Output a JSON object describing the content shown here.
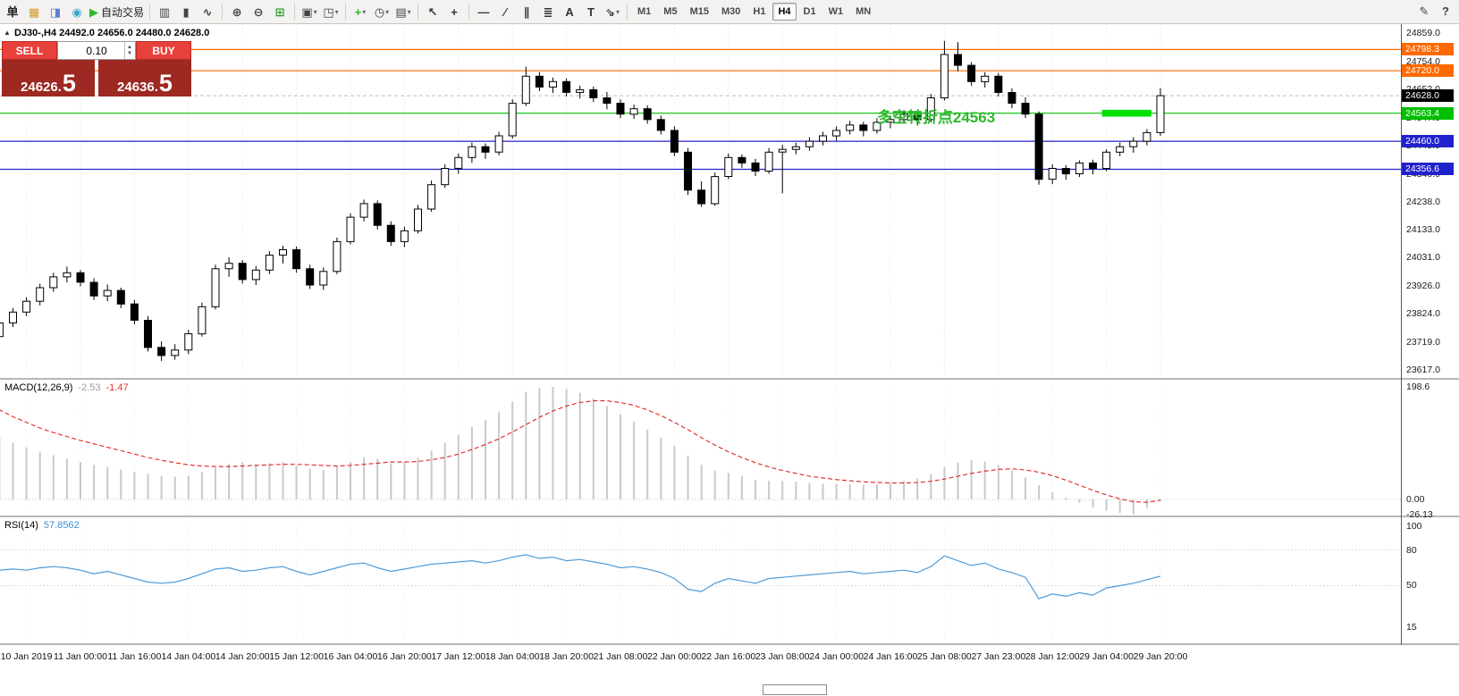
{
  "toolbar": {
    "groups": [
      {
        "items": [
          {
            "name": "new-order-button",
            "glyph": "单",
            "color": "#222"
          },
          {
            "name": "market-watch-icon",
            "glyph": "▦",
            "color": "#d39b2c"
          },
          {
            "name": "data-window-icon",
            "glyph": "◨",
            "color": "#5b7fd4"
          },
          {
            "name": "navigator-icon",
            "glyph": "◉",
            "color": "#3aa6c4"
          },
          {
            "name": "autotrading-button",
            "glyph": "▶",
            "color": "#2db82d",
            "label": "自动交易"
          }
        ]
      },
      {
        "items": [
          {
            "name": "bar-chart-icon",
            "glyph": "▥",
            "color": "#444"
          },
          {
            "name": "candlestick-chart-icon",
            "glyph": "▮",
            "color": "#444"
          },
          {
            "name": "line-chart-icon",
            "glyph": "∿",
            "color": "#444"
          }
        ]
      },
      {
        "items": [
          {
            "name": "zoom-in-icon",
            "glyph": "⊕",
            "color": "#444"
          },
          {
            "name": "zoom-out-icon",
            "glyph": "⊖",
            "color": "#444"
          },
          {
            "name": "tile-windows-icon",
            "glyph": "⊞",
            "color": "#2f9e2f"
          }
        ]
      },
      {
        "items": [
          {
            "name": "new-chart-icon",
            "glyph": "▣",
            "color": "#444",
            "dropdown": true
          },
          {
            "name": "profiles-icon",
            "glyph": "◳",
            "color": "#444",
            "dropdown": true
          }
        ]
      },
      {
        "items": [
          {
            "name": "indicators-icon",
            "glyph": "+",
            "color": "#2db82d",
            "dropdown": true
          },
          {
            "name": "periods-icon",
            "glyph": "◷",
            "color": "#444",
            "dropdown": true
          },
          {
            "name": "templates-icon",
            "glyph": "▤",
            "color": "#444",
            "dropdown": true
          }
        ]
      },
      {
        "items": [
          {
            "name": "cursor-icon",
            "glyph": "↖",
            "color": "#333"
          },
          {
            "name": "crosshair-icon",
            "glyph": "+",
            "color": "#333"
          }
        ]
      },
      {
        "items": [
          {
            "name": "horizontal-line-icon",
            "glyph": "—",
            "color": "#333"
          },
          {
            "name": "trendline-icon",
            "glyph": "∕",
            "color": "#333"
          },
          {
            "name": "channel-icon",
            "glyph": "∥",
            "color": "#333"
          },
          {
            "name": "fibonacci-icon",
            "glyph": "≣",
            "color": "#333"
          },
          {
            "name": "text-icon",
            "glyph": "A",
            "color": "#333"
          },
          {
            "name": "label-icon",
            "glyph": "T",
            "color": "#333"
          },
          {
            "name": "arrows-icon",
            "glyph": "⇘",
            "color": "#333",
            "dropdown": true
          }
        ]
      }
    ],
    "timeframes": {
      "items": [
        "M1",
        "M5",
        "M15",
        "M30",
        "H1",
        "H4",
        "D1",
        "W1",
        "MN"
      ],
      "active": "H4"
    },
    "right_items": [
      {
        "name": "chart-properties-icon",
        "glyph": "✎",
        "color": "#444"
      },
      {
        "name": "context-help-icon",
        "glyph": "?",
        "color": "#444"
      }
    ]
  },
  "chart_header": {
    "toggle_glyph": "▲",
    "symbol_info": "DJ30-,H4 24492.0 24656.0 24480.0 24628.0"
  },
  "trade_panel": {
    "sell_label": "SELL",
    "buy_label": "BUY",
    "volume": "0.10",
    "sell_price": "24626.",
    "sell_price_big": "5",
    "buy_price": "24636.",
    "buy_price_big": "5"
  },
  "chart_data": {
    "type": "candlestick",
    "symbol": "DJ30-",
    "timeframe": "H4",
    "current_bar": {
      "open": 24492.0,
      "high": 24656.0,
      "low": 24480.0,
      "close": 24628.0
    },
    "price_axis_ticks": [
      "24859.0",
      "24754.0",
      "24652.0",
      "24547.0",
      "24445.0",
      "24340.0",
      "24238.0",
      "24133.0",
      "24031.0",
      "23926.0",
      "23824.0",
      "23719.0",
      "23617.0"
    ],
    "time_axis": [
      "10 Jan 2019",
      "11 Jan 00:00",
      "11 Jan 16:00",
      "14 Jan 04:00",
      "14 Jan 20:00",
      "15 Jan 12:00",
      "16 Jan 04:00",
      "16 Jan 20:00",
      "17 Jan 12:00",
      "18 Jan 04:00",
      "18 Jan 20:00",
      "21 Jan 08:00",
      "22 Jan 00:00",
      "22 Jan 16:00",
      "23 Jan 08:00",
      "24 Jan 00:00",
      "24 Jan 16:00",
      "25 Jan 08:00",
      "27 Jan 23:00",
      "28 Jan 12:00",
      "29 Jan 04:00",
      "29 Jan 20:00"
    ],
    "candles": [
      [
        23720,
        23760,
        23690,
        23740
      ],
      [
        23740,
        23805,
        23725,
        23790
      ],
      [
        23790,
        23845,
        23775,
        23830
      ],
      [
        23830,
        23885,
        23815,
        23870
      ],
      [
        23870,
        23935,
        23855,
        23920
      ],
      [
        23920,
        23975,
        23905,
        23960
      ],
      [
        23960,
        23998,
        23940,
        23975
      ],
      [
        23975,
        23985,
        23925,
        23940
      ],
      [
        23940,
        23955,
        23875,
        23890
      ],
      [
        23890,
        23932,
        23870,
        23910
      ],
      [
        23910,
        23920,
        23845,
        23860
      ],
      [
        23860,
        23875,
        23785,
        23800
      ],
      [
        23800,
        23815,
        23685,
        23700
      ],
      [
        23700,
        23722,
        23650,
        23670
      ],
      [
        23670,
        23712,
        23655,
        23690
      ],
      [
        23690,
        23765,
        23675,
        23750
      ],
      [
        23750,
        23865,
        23740,
        23850
      ],
      [
        23850,
        24005,
        23840,
        23990
      ],
      [
        23990,
        24032,
        23960,
        24010
      ],
      [
        24010,
        24022,
        23935,
        23950
      ],
      [
        23950,
        24000,
        23930,
        23985
      ],
      [
        23985,
        24055,
        23970,
        24040
      ],
      [
        24040,
        24075,
        24010,
        24060
      ],
      [
        24060,
        24072,
        23975,
        23990
      ],
      [
        23990,
        24005,
        23915,
        23930
      ],
      [
        23930,
        23995,
        23912,
        23980
      ],
      [
        23980,
        24105,
        23970,
        24090
      ],
      [
        24090,
        24195,
        24080,
        24180
      ],
      [
        24180,
        24245,
        24165,
        24230
      ],
      [
        24230,
        24242,
        24135,
        24150
      ],
      [
        24150,
        24165,
        24075,
        24090
      ],
      [
        24090,
        24145,
        24070,
        24130
      ],
      [
        24130,
        24225,
        24120,
        24210
      ],
      [
        24210,
        24315,
        24200,
        24300
      ],
      [
        24300,
        24375,
        24288,
        24360
      ],
      [
        24360,
        24415,
        24340,
        24400
      ],
      [
        24400,
        24455,
        24380,
        24440
      ],
      [
        24440,
        24452,
        24395,
        24420
      ],
      [
        24420,
        24495,
        24408,
        24480
      ],
      [
        24480,
        24615,
        24470,
        24600
      ],
      [
        24600,
        24735,
        24590,
        24700
      ],
      [
        24700,
        24715,
        24645,
        24660
      ],
      [
        24660,
        24695,
        24638,
        24680
      ],
      [
        24680,
        24692,
        24625,
        24640
      ],
      [
        24640,
        24665,
        24618,
        24650
      ],
      [
        24650,
        24662,
        24605,
        24620
      ],
      [
        24620,
        24642,
        24578,
        24600
      ],
      [
        24600,
        24615,
        24545,
        24560
      ],
      [
        24560,
        24595,
        24542,
        24580
      ],
      [
        24580,
        24592,
        24525,
        24540
      ],
      [
        24540,
        24555,
        24485,
        24500
      ],
      [
        24500,
        24515,
        24405,
        24420
      ],
      [
        24420,
        24435,
        24262,
        24280
      ],
      [
        24280,
        24312,
        24218,
        24230
      ],
      [
        24230,
        24345,
        24222,
        24330
      ],
      [
        24330,
        24415,
        24320,
        24400
      ],
      [
        24400,
        24412,
        24362,
        24380
      ],
      [
        24380,
        24395,
        24332,
        24350
      ],
      [
        24350,
        24435,
        24340,
        24420
      ],
      [
        24420,
        24448,
        24268,
        24430
      ],
      [
        24430,
        24455,
        24412,
        24440
      ],
      [
        24440,
        24475,
        24425,
        24460
      ],
      [
        24460,
        24495,
        24445,
        24480
      ],
      [
        24480,
        24515,
        24462,
        24500
      ],
      [
        24500,
        24535,
        24485,
        24520
      ],
      [
        24520,
        24532,
        24478,
        24500
      ],
      [
        24500,
        24545,
        24488,
        24530
      ],
      [
        24530,
        24555,
        24508,
        24540
      ],
      [
        24540,
        24575,
        24525,
        24560
      ],
      [
        24560,
        24572,
        24518,
        24540
      ],
      [
        24540,
        24635,
        24530,
        24620
      ],
      [
        24620,
        24830,
        24610,
        24780
      ],
      [
        24780,
        24825,
        24718,
        24740
      ],
      [
        24740,
        24752,
        24665,
        24680
      ],
      [
        24680,
        24715,
        24658,
        24700
      ],
      [
        24700,
        24712,
        24625,
        24640
      ],
      [
        24640,
        24655,
        24582,
        24600
      ],
      [
        24600,
        24622,
        24545,
        24560
      ],
      [
        24560,
        24570,
        24300,
        24320
      ],
      [
        24320,
        24375,
        24302,
        24360
      ],
      [
        24360,
        24372,
        24318,
        24340
      ],
      [
        24340,
        24390,
        24328,
        24380
      ],
      [
        24380,
        24392,
        24338,
        24360
      ],
      [
        24360,
        24430,
        24350,
        24420
      ],
      [
        24420,
        24455,
        24405,
        24440
      ],
      [
        24440,
        24475,
        24418,
        24460
      ],
      [
        24460,
        24505,
        24445,
        24492
      ],
      [
        24492,
        24656,
        24480,
        24628
      ]
    ],
    "current_price": {
      "value": 24628.0,
      "label": "24628.0",
      "tag_color": "#000000"
    },
    "hlines": [
      {
        "price": 24798.3,
        "label": "24798.3",
        "color": "#ff6a00"
      },
      {
        "price": 24720.0,
        "label": "24720.0",
        "color": "#ff6a00"
      },
      {
        "price": 24563.4,
        "label": "24563.4",
        "color": "#00bf00"
      },
      {
        "price": 24460.0,
        "label": "24460.0",
        "color": "#2222cc"
      },
      {
        "price": 24356.6,
        "label": "24356.6",
        "color": "#2222cc"
      }
    ],
    "rect_highlight": {
      "from_index": 83,
      "to_index": 86,
      "price_top": 24576,
      "price_bottom": 24551,
      "color": "#00e000"
    },
    "annotation": {
      "text": "多空转折点24563",
      "color": "#2eb82e",
      "index": 66,
      "price": 24530
    },
    "macd": {
      "name": "MACD(12,26,9)",
      "main_value": "-2.53",
      "signal_value": "-1.47",
      "axis_labels": [
        "198.6",
        "0.00",
        "-26.13"
      ],
      "histogram": [
        120,
        110,
        100,
        92,
        84,
        78,
        72,
        66,
        61,
        57,
        53,
        49,
        45,
        42,
        40,
        42,
        48,
        56,
        63,
        66,
        62,
        64,
        66,
        60,
        54,
        52,
        58,
        66,
        74,
        72,
        64,
        66,
        74,
        86,
        100,
        114,
        128,
        140,
        154,
        172,
        190,
        197,
        198.6,
        195,
        188,
        178,
        165,
        150,
        137,
        123,
        109,
        94,
        77,
        61,
        51,
        47,
        41,
        35,
        33,
        32,
        31,
        29,
        28,
        27,
        27,
        26,
        27,
        29,
        33,
        37,
        45,
        57,
        65,
        69,
        67,
        61,
        51,
        39,
        25,
        13,
        3,
        -6,
        -14,
        -20,
        -24,
        -26.13,
        -15,
        -2.53
      ],
      "signal": [
        170,
        158,
        146,
        136,
        126,
        118,
        111,
        104,
        98,
        92,
        86,
        80,
        74,
        69,
        65,
        61,
        59,
        58,
        58,
        59,
        60,
        61,
        62,
        62,
        61,
        60,
        59,
        60,
        62,
        64,
        66,
        66,
        67,
        70,
        74,
        80,
        88,
        97,
        107,
        119,
        132,
        145,
        156,
        165,
        171,
        174,
        174,
        171,
        166,
        158,
        148,
        136,
        123,
        109,
        96,
        84,
        74,
        65,
        57,
        51,
        46,
        41,
        38,
        35,
        33,
        31,
        30,
        29,
        29,
        30,
        32,
        36,
        41,
        46,
        50,
        53,
        54,
        52,
        48,
        42,
        34,
        25,
        16,
        8,
        1,
        -4,
        -5,
        -1.47
      ]
    },
    "rsi": {
      "name": "RSI(14)",
      "value": "57.8562",
      "levels": [
        "100",
        "80",
        "50",
        "15"
      ],
      "values": [
        62,
        63,
        64,
        63,
        65,
        66,
        65,
        63,
        60,
        62,
        59,
        56,
        53,
        52,
        53,
        56,
        60,
        64,
        65,
        62,
        63,
        65,
        66,
        62,
        59,
        62,
        65,
        68,
        69,
        65,
        62,
        64,
        66,
        68,
        69,
        70,
        71,
        69,
        71,
        74,
        76,
        73,
        74,
        71,
        72,
        70,
        68,
        65,
        66,
        64,
        61,
        56,
        47,
        45,
        52,
        56,
        54,
        52,
        56,
        57,
        58,
        59,
        60,
        61,
        62,
        60,
        61,
        62,
        63,
        61,
        66,
        75,
        71,
        67,
        69,
        64,
        61,
        57,
        39,
        43,
        41,
        44,
        42,
        48,
        50,
        52,
        55,
        57.86
      ]
    }
  }
}
